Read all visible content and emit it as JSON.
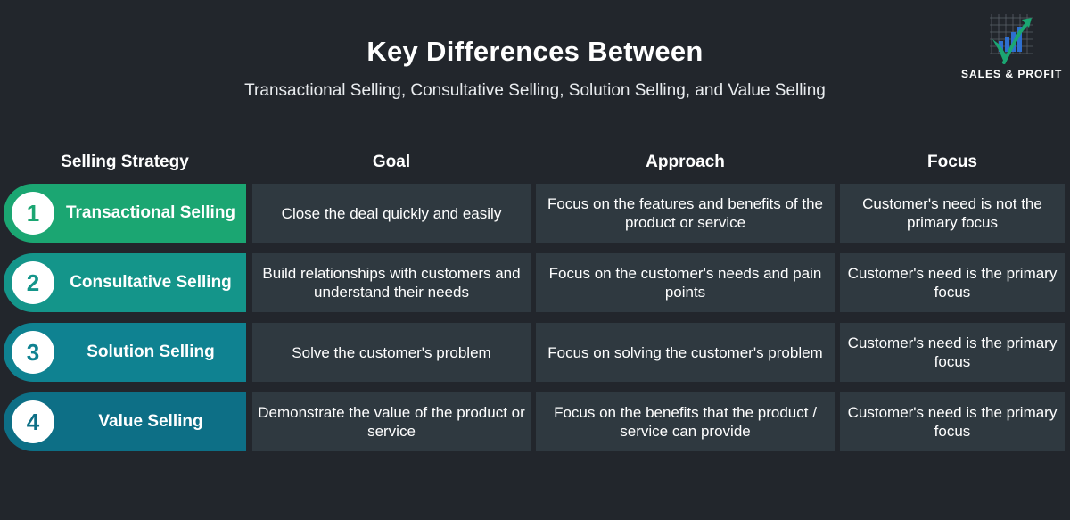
{
  "header": {
    "title": "Key Differences Between",
    "subtitle": "Transactional Selling, Consultative Selling, Solution Selling, and Value Selling"
  },
  "logo": {
    "text": "SALES & PROFIT",
    "icon": "chart-growth-icon"
  },
  "columns": [
    "Selling Strategy",
    "Goal",
    "Approach",
    "Focus"
  ],
  "rows": [
    {
      "number": "1",
      "strategy": "Transactional Selling",
      "color": "#1ba672",
      "goal": "Close the deal quickly and easily",
      "approach": "Focus on the features and benefits of the product or service",
      "focus": "Customer's need is not the primary focus"
    },
    {
      "number": "2",
      "strategy": "Consultative Selling",
      "color": "#14958a",
      "goal": "Build relationships with customers and understand their needs",
      "approach": "Focus on the customer's needs and pain points",
      "focus": "Customer's need is the primary focus"
    },
    {
      "number": "3",
      "strategy": "Solution Selling",
      "color": "#0f8291",
      "goal": "Solve the customer's problem",
      "approach": "Focus on solving the customer's problem",
      "focus": "Customer's need is the primary focus"
    },
    {
      "number": "4",
      "strategy": "Value Selling",
      "color": "#0d6f86",
      "goal": "Demonstrate the value of the product or service",
      "approach": "Focus on the benefits that the product / service can provide",
      "focus": "Customer's need is the primary focus"
    }
  ]
}
